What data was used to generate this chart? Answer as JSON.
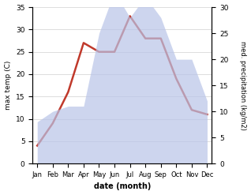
{
  "months": [
    "Jan",
    "Feb",
    "Mar",
    "Apr",
    "May",
    "Jun",
    "Jul",
    "Aug",
    "Sep",
    "Oct",
    "Nov",
    "Dec"
  ],
  "temperature": [
    4,
    9,
    16,
    27,
    25,
    25,
    33,
    28,
    28,
    19,
    12,
    11
  ],
  "precipitation": [
    8,
    10,
    11,
    11,
    25,
    33,
    28,
    32,
    28,
    20,
    20,
    12
  ],
  "temp_color": "#c0392b",
  "precip_color": "#b8c4e8",
  "title": "",
  "xlabel": "date (month)",
  "ylabel_left": "max temp (C)",
  "ylabel_right": "med. precipitation (kg/m2)",
  "ylim_left": [
    0,
    35
  ],
  "ylim_right": [
    0,
    30
  ],
  "yticks_left": [
    0,
    5,
    10,
    15,
    20,
    25,
    30,
    35
  ],
  "yticks_right": [
    0,
    5,
    10,
    15,
    20,
    25,
    30
  ],
  "bg_color": "#ffffff",
  "grid_color": "#d0d0d0"
}
